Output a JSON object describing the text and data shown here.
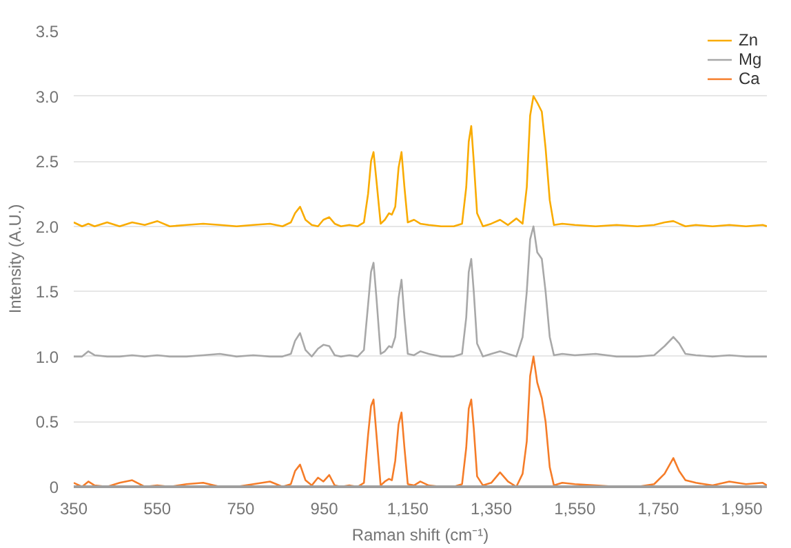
{
  "chart_data": {
    "type": "line",
    "xlabel": "Raman shift (cm⁻¹)",
    "ylabel": "Intensity (A.U.)",
    "x": [
      350,
      370,
      385,
      400,
      430,
      460,
      490,
      520,
      550,
      580,
      620,
      660,
      700,
      740,
      780,
      820,
      850,
      870,
      880,
      892,
      905,
      920,
      935,
      948,
      962,
      975,
      990,
      1010,
      1030,
      1045,
      1055,
      1062,
      1068,
      1075,
      1085,
      1095,
      1105,
      1112,
      1120,
      1128,
      1135,
      1142,
      1150,
      1165,
      1180,
      1200,
      1230,
      1260,
      1280,
      1290,
      1296,
      1302,
      1308,
      1316,
      1330,
      1350,
      1371,
      1390,
      1410,
      1425,
      1435,
      1443,
      1451,
      1460,
      1471,
      1480,
      1490,
      1500,
      1520,
      1550,
      1600,
      1650,
      1700,
      1740,
      1765,
      1786,
      1800,
      1815,
      1840,
      1880,
      1920,
      1960,
      2000,
      2010
    ],
    "series": [
      {
        "name": "Zn",
        "color": "#f9ab00",
        "values": [
          2.03,
          2.0,
          2.02,
          2.0,
          2.03,
          2.0,
          2.03,
          2.01,
          2.04,
          2.0,
          2.01,
          2.02,
          2.01,
          2.0,
          2.01,
          2.02,
          2.0,
          2.03,
          2.1,
          2.15,
          2.05,
          2.01,
          2.0,
          2.05,
          2.07,
          2.02,
          2.0,
          2.01,
          2.0,
          2.03,
          2.25,
          2.5,
          2.57,
          2.35,
          2.02,
          2.05,
          2.1,
          2.09,
          2.15,
          2.45,
          2.57,
          2.3,
          2.03,
          2.05,
          2.02,
          2.01,
          2.0,
          2.0,
          2.02,
          2.3,
          2.65,
          2.77,
          2.5,
          2.1,
          2.0,
          2.02,
          2.05,
          2.01,
          2.06,
          2.02,
          2.3,
          2.85,
          3.0,
          2.95,
          2.88,
          2.6,
          2.2,
          2.01,
          2.02,
          2.01,
          2.0,
          2.01,
          2.0,
          2.01,
          2.03,
          2.04,
          2.02,
          2.0,
          2.01,
          2.0,
          2.01,
          2.0,
          2.01,
          2.0
        ]
      },
      {
        "name": "Mg",
        "color": "#a8a8a8",
        "values": [
          1.0,
          1.0,
          1.04,
          1.01,
          1.0,
          1.0,
          1.01,
          1.0,
          1.01,
          1.0,
          1.0,
          1.01,
          1.02,
          1.0,
          1.01,
          1.0,
          1.0,
          1.02,
          1.12,
          1.18,
          1.05,
          1.0,
          1.06,
          1.09,
          1.08,
          1.01,
          1.0,
          1.01,
          1.0,
          1.05,
          1.4,
          1.65,
          1.72,
          1.45,
          1.02,
          1.04,
          1.08,
          1.07,
          1.15,
          1.45,
          1.59,
          1.3,
          1.02,
          1.01,
          1.04,
          1.02,
          1.0,
          1.0,
          1.02,
          1.3,
          1.65,
          1.75,
          1.5,
          1.1,
          1.0,
          1.02,
          1.04,
          1.02,
          1.0,
          1.15,
          1.5,
          1.9,
          2.0,
          1.8,
          1.75,
          1.5,
          1.15,
          1.01,
          1.02,
          1.01,
          1.02,
          1.0,
          1.0,
          1.01,
          1.08,
          1.15,
          1.1,
          1.02,
          1.01,
          1.0,
          1.01,
          1.0,
          1.0,
          1.0
        ]
      },
      {
        "name": "Ca",
        "color": "#f57c28",
        "values": [
          0.03,
          0.0,
          0.04,
          0.01,
          0.0,
          0.03,
          0.05,
          0.0,
          0.01,
          0.0,
          0.02,
          0.03,
          0.0,
          0.0,
          0.02,
          0.04,
          0.0,
          0.02,
          0.12,
          0.17,
          0.05,
          0.01,
          0.07,
          0.04,
          0.09,
          0.01,
          0.0,
          0.01,
          0.0,
          0.03,
          0.4,
          0.62,
          0.67,
          0.4,
          0.01,
          0.04,
          0.06,
          0.05,
          0.2,
          0.48,
          0.57,
          0.3,
          0.02,
          0.01,
          0.04,
          0.01,
          0.0,
          0.0,
          0.02,
          0.3,
          0.6,
          0.67,
          0.45,
          0.08,
          0.01,
          0.03,
          0.11,
          0.04,
          0.0,
          0.1,
          0.35,
          0.85,
          1.0,
          0.8,
          0.68,
          0.5,
          0.15,
          0.01,
          0.03,
          0.02,
          0.01,
          0.0,
          0.0,
          0.02,
          0.1,
          0.22,
          0.12,
          0.05,
          0.03,
          0.01,
          0.04,
          0.02,
          0.03,
          0.01
        ]
      }
    ],
    "xlim": [
      350,
      2010
    ],
    "ylim": [
      0,
      3.5
    ],
    "xticks": [
      350,
      550,
      750,
      950,
      {
        "value": 1150,
        "label": "1,150"
      },
      {
        "value": 1350,
        "label": "1,350"
      },
      {
        "value": 1550,
        "label": "1,550"
      },
      {
        "value": 1750,
        "label": "1,750"
      },
      {
        "value": 1950,
        "label": "1,950"
      }
    ],
    "yticks": [
      0,
      {
        "value": 0.5,
        "label": "0.5"
      },
      {
        "value": 1,
        "label": "1.0"
      },
      {
        "value": 1.5,
        "label": "1.5"
      },
      {
        "value": 2,
        "label": "2.0"
      },
      {
        "value": 2.5,
        "label": "2.5"
      },
      {
        "value": 3,
        "label": "3.0"
      },
      {
        "value": 3.5,
        "label": "3.5"
      }
    ],
    "grid": "y",
    "legend": "top right",
    "marker": "none",
    "line_style": "solid"
  }
}
